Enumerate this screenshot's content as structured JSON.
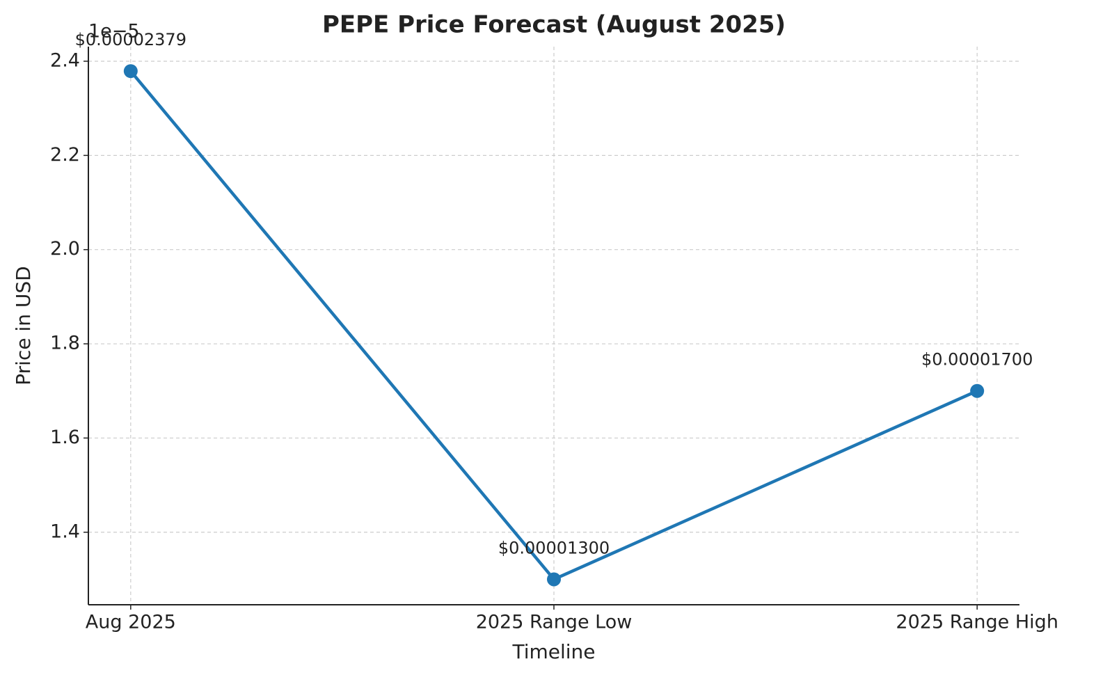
{
  "chart_data": {
    "type": "line",
    "title": "PEPE Price Forecast (August 2025)",
    "x_label": "Timeline",
    "y_label": "Price in USD",
    "y_offset_label": "1e−5",
    "categories": [
      "Aug 2025",
      "2025 Range Low",
      "2025 Range High"
    ],
    "values": [
      2.379,
      1.3,
      1.7
    ],
    "value_labels": [
      "$0.00002379",
      "$0.00001300",
      "$0.00001700"
    ],
    "color": "#1f77b4",
    "ylim": [
      1.246,
      2.431
    ],
    "yticks": [
      1.4,
      1.6,
      1.8,
      {
        "value": 2,
        "label": "2.0"
      },
      2.2,
      2.4
    ],
    "grid": true
  }
}
